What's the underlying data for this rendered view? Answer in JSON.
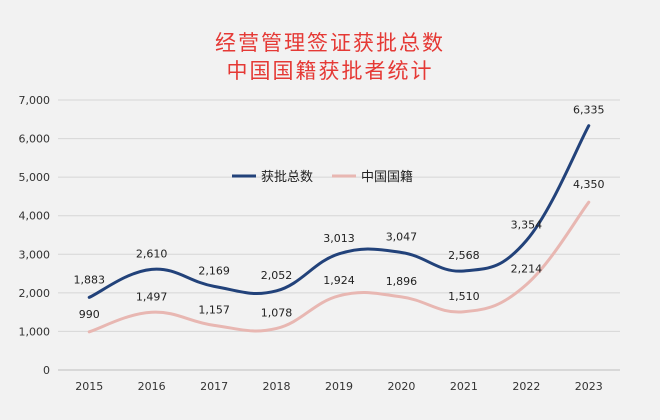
{
  "chart_data": {
    "type": "line",
    "title_lines": [
      "经营管理签证获批总数",
      "中国国籍获批者统计"
    ],
    "categories": [
      "2015",
      "2016",
      "2017",
      "2018",
      "2019",
      "2020",
      "2021",
      "2022",
      "2023"
    ],
    "y_ticks": [
      "0",
      "1,000",
      "2,000",
      "3,000",
      "4,000",
      "5,000",
      "6,000",
      "7,000"
    ],
    "ylim": [
      0,
      7000
    ],
    "grid": true,
    "legend_position": "center",
    "series": [
      {
        "name": "获批总数",
        "color": "#22427a",
        "values": [
          1883,
          2610,
          2169,
          2052,
          3013,
          3047,
          2568,
          3354,
          6335
        ],
        "labels": [
          "1,883",
          "2,610",
          "2,169",
          "2,052",
          "3,013",
          "3,047",
          "2,568",
          "3,354",
          "6,335"
        ]
      },
      {
        "name": "中国国籍",
        "color": "#e8b7b2",
        "values": [
          990,
          1497,
          1157,
          1078,
          1924,
          1896,
          1510,
          2214,
          4350
        ],
        "labels": [
          "990",
          "1,497",
          "1,157",
          "1,078",
          "1,924",
          "1,896",
          "1,510",
          "2,214",
          "4,350"
        ]
      }
    ]
  }
}
